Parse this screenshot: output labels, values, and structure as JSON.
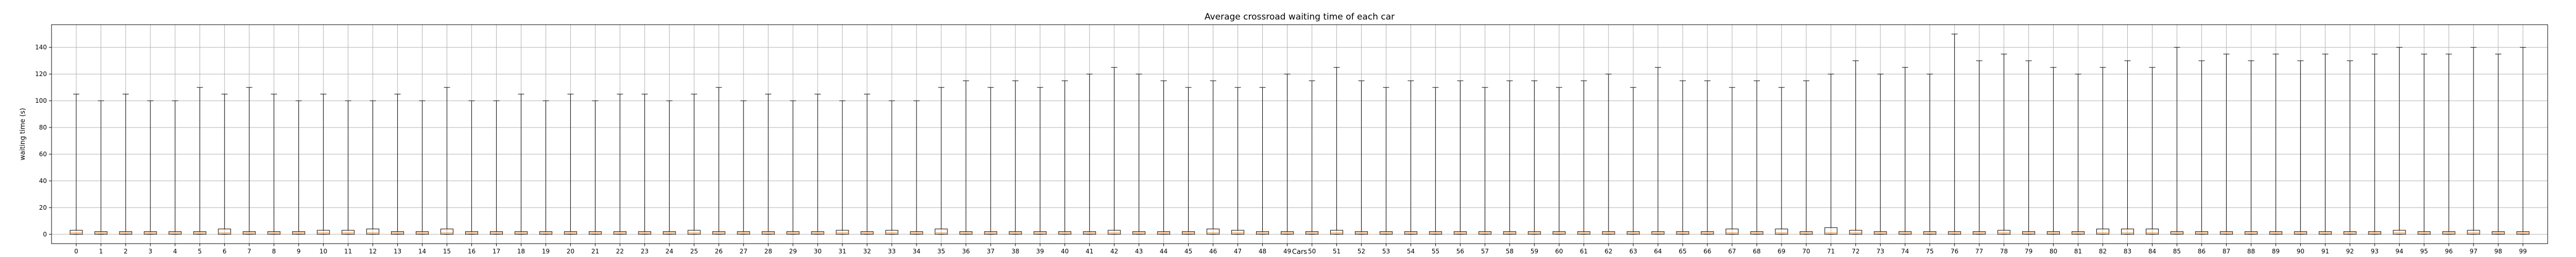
{
  "chart_data": {
    "type": "boxplot",
    "title": "Average crossroad waiting time of each car",
    "xlabel": "Cars",
    "ylabel": "waiting time (s)",
    "ylim": [
      -7,
      157
    ],
    "yticks": [
      0,
      20,
      40,
      60,
      80,
      100,
      120,
      140
    ],
    "grid": true,
    "colors": {
      "box": "#000000",
      "median": "#ff7f0e",
      "grid": "#b0b0b0"
    },
    "categories": [
      "0",
      "1",
      "2",
      "3",
      "4",
      "5",
      "6",
      "7",
      "8",
      "9",
      "10",
      "11",
      "12",
      "13",
      "14",
      "15",
      "16",
      "17",
      "18",
      "19",
      "20",
      "21",
      "22",
      "23",
      "24",
      "25",
      "26",
      "27",
      "28",
      "29",
      "30",
      "31",
      "32",
      "33",
      "34",
      "35",
      "36",
      "37",
      "38",
      "39",
      "40",
      "41",
      "42",
      "43",
      "44",
      "45",
      "46",
      "47",
      "48",
      "49",
      "50",
      "51",
      "52",
      "53",
      "54",
      "55",
      "56",
      "57",
      "58",
      "59",
      "60",
      "61",
      "62",
      "63",
      "64",
      "65",
      "66",
      "67",
      "68",
      "69",
      "70",
      "71",
      "72",
      "73",
      "74",
      "75",
      "76",
      "77",
      "78",
      "79",
      "80",
      "81",
      "82",
      "83",
      "84",
      "85",
      "86",
      "87",
      "88",
      "89",
      "90",
      "91",
      "92",
      "93",
      "94",
      "95",
      "96",
      "97",
      "98",
      "99"
    ],
    "boxes": [
      {
        "whislo": 0,
        "q1": 0,
        "med": 1,
        "q3": 3,
        "whishi": 105
      },
      {
        "whislo": 0,
        "q1": 0,
        "med": 1,
        "q3": 2,
        "whishi": 100
      },
      {
        "whislo": 0,
        "q1": 0,
        "med": 1,
        "q3": 2,
        "whishi": 105
      },
      {
        "whislo": 0,
        "q1": 0,
        "med": 1,
        "q3": 2,
        "whishi": 100
      },
      {
        "whislo": 0,
        "q1": 0,
        "med": 1,
        "q3": 2,
        "whishi": 100
      },
      {
        "whislo": 0,
        "q1": 0,
        "med": 1,
        "q3": 2,
        "whishi": 110
      },
      {
        "whislo": 0,
        "q1": 0,
        "med": 1,
        "q3": 4,
        "whishi": 105
      },
      {
        "whislo": 0,
        "q1": 0,
        "med": 1,
        "q3": 2,
        "whishi": 110
      },
      {
        "whislo": 0,
        "q1": 0,
        "med": 1,
        "q3": 2,
        "whishi": 105
      },
      {
        "whislo": 0,
        "q1": 0,
        "med": 1,
        "q3": 2,
        "whishi": 100
      },
      {
        "whislo": 0,
        "q1": 0,
        "med": 1,
        "q3": 3,
        "whishi": 105
      },
      {
        "whislo": 0,
        "q1": 0,
        "med": 1,
        "q3": 3,
        "whishi": 100
      },
      {
        "whislo": 0,
        "q1": 0,
        "med": 1,
        "q3": 4,
        "whishi": 100
      },
      {
        "whislo": 0,
        "q1": 0,
        "med": 1,
        "q3": 2,
        "whishi": 105
      },
      {
        "whislo": 0,
        "q1": 0,
        "med": 1,
        "q3": 2,
        "whishi": 100
      },
      {
        "whislo": 0,
        "q1": 0,
        "med": 1,
        "q3": 4,
        "whishi": 110
      },
      {
        "whislo": 0,
        "q1": 0,
        "med": 1,
        "q3": 2,
        "whishi": 100
      },
      {
        "whislo": 0,
        "q1": 0,
        "med": 1,
        "q3": 2,
        "whishi": 100
      },
      {
        "whislo": 0,
        "q1": 0,
        "med": 1,
        "q3": 2,
        "whishi": 105
      },
      {
        "whislo": 0,
        "q1": 0,
        "med": 1,
        "q3": 2,
        "whishi": 100
      },
      {
        "whislo": 0,
        "q1": 0,
        "med": 1,
        "q3": 2,
        "whishi": 105
      },
      {
        "whislo": 0,
        "q1": 0,
        "med": 1,
        "q3": 2,
        "whishi": 100
      },
      {
        "whislo": 0,
        "q1": 0,
        "med": 1,
        "q3": 2,
        "whishi": 105
      },
      {
        "whislo": 0,
        "q1": 0,
        "med": 1,
        "q3": 2,
        "whishi": 105
      },
      {
        "whislo": 0,
        "q1": 0,
        "med": 1,
        "q3": 2,
        "whishi": 100
      },
      {
        "whislo": 0,
        "q1": 0,
        "med": 1,
        "q3": 3,
        "whishi": 105
      },
      {
        "whislo": 0,
        "q1": 0,
        "med": 1,
        "q3": 2,
        "whishi": 110
      },
      {
        "whislo": 0,
        "q1": 0,
        "med": 1,
        "q3": 2,
        "whishi": 100
      },
      {
        "whislo": 0,
        "q1": 0,
        "med": 1,
        "q3": 2,
        "whishi": 105
      },
      {
        "whislo": 0,
        "q1": 0,
        "med": 1,
        "q3": 2,
        "whishi": 100
      },
      {
        "whislo": 0,
        "q1": 0,
        "med": 1,
        "q3": 2,
        "whishi": 105
      },
      {
        "whislo": 0,
        "q1": 0,
        "med": 1,
        "q3": 3,
        "whishi": 100
      },
      {
        "whislo": 0,
        "q1": 0,
        "med": 1,
        "q3": 2,
        "whishi": 105
      },
      {
        "whislo": 0,
        "q1": 0,
        "med": 1,
        "q3": 3,
        "whishi": 100
      },
      {
        "whislo": 0,
        "q1": 0,
        "med": 1,
        "q3": 2,
        "whishi": 100
      },
      {
        "whislo": 0,
        "q1": 0,
        "med": 1,
        "q3": 4,
        "whishi": 110
      },
      {
        "whislo": 0,
        "q1": 0,
        "med": 1,
        "q3": 2,
        "whishi": 115
      },
      {
        "whislo": 0,
        "q1": 0,
        "med": 1,
        "q3": 2,
        "whishi": 110
      },
      {
        "whislo": 0,
        "q1": 0,
        "med": 1,
        "q3": 2,
        "whishi": 115
      },
      {
        "whislo": 0,
        "q1": 0,
        "med": 1,
        "q3": 2,
        "whishi": 110
      },
      {
        "whislo": 0,
        "q1": 0,
        "med": 1,
        "q3": 2,
        "whishi": 115
      },
      {
        "whislo": 0,
        "q1": 0,
        "med": 1,
        "q3": 2,
        "whishi": 120
      },
      {
        "whislo": 0,
        "q1": 0,
        "med": 1,
        "q3": 3,
        "whishi": 125
      },
      {
        "whislo": 0,
        "q1": 0,
        "med": 1,
        "q3": 2,
        "whishi": 120
      },
      {
        "whislo": 0,
        "q1": 0,
        "med": 1,
        "q3": 2,
        "whishi": 115
      },
      {
        "whislo": 0,
        "q1": 0,
        "med": 1,
        "q3": 2,
        "whishi": 110
      },
      {
        "whislo": 0,
        "q1": 0,
        "med": 1,
        "q3": 4,
        "whishi": 115
      },
      {
        "whislo": 0,
        "q1": 0,
        "med": 1,
        "q3": 3,
        "whishi": 110
      },
      {
        "whislo": 0,
        "q1": 0,
        "med": 1,
        "q3": 2,
        "whishi": 110
      },
      {
        "whislo": 0,
        "q1": 0,
        "med": 1,
        "q3": 2,
        "whishi": 120
      },
      {
        "whislo": 0,
        "q1": 0,
        "med": 1,
        "q3": 2,
        "whishi": 115
      },
      {
        "whislo": 0,
        "q1": 0,
        "med": 1,
        "q3": 3,
        "whishi": 125
      },
      {
        "whislo": 0,
        "q1": 0,
        "med": 1,
        "q3": 2,
        "whishi": 115
      },
      {
        "whislo": 0,
        "q1": 0,
        "med": 1,
        "q3": 2,
        "whishi": 110
      },
      {
        "whislo": 0,
        "q1": 0,
        "med": 1,
        "q3": 2,
        "whishi": 115
      },
      {
        "whislo": 0,
        "q1": 0,
        "med": 1,
        "q3": 2,
        "whishi": 110
      },
      {
        "whislo": 0,
        "q1": 0,
        "med": 1,
        "q3": 2,
        "whishi": 115
      },
      {
        "whislo": 0,
        "q1": 0,
        "med": 1,
        "q3": 2,
        "whishi": 110
      },
      {
        "whislo": 0,
        "q1": 0,
        "med": 1,
        "q3": 2,
        "whishi": 115
      },
      {
        "whislo": 0,
        "q1": 0,
        "med": 1,
        "q3": 2,
        "whishi": 115
      },
      {
        "whislo": 0,
        "q1": 0,
        "med": 1,
        "q3": 2,
        "whishi": 110
      },
      {
        "whislo": 0,
        "q1": 0,
        "med": 1,
        "q3": 2,
        "whishi": 115
      },
      {
        "whislo": 0,
        "q1": 0,
        "med": 1,
        "q3": 2,
        "whishi": 120
      },
      {
        "whislo": 0,
        "q1": 0,
        "med": 1,
        "q3": 2,
        "whishi": 110
      },
      {
        "whislo": 0,
        "q1": 0,
        "med": 1,
        "q3": 2,
        "whishi": 125
      },
      {
        "whislo": 0,
        "q1": 0,
        "med": 1,
        "q3": 2,
        "whishi": 115
      },
      {
        "whislo": 0,
        "q1": 0,
        "med": 1,
        "q3": 2,
        "whishi": 115
      },
      {
        "whislo": 0,
        "q1": 0,
        "med": 1,
        "q3": 4,
        "whishi": 110
      },
      {
        "whislo": 0,
        "q1": 0,
        "med": 1,
        "q3": 2,
        "whishi": 115
      },
      {
        "whislo": 0,
        "q1": 0,
        "med": 1,
        "q3": 4,
        "whishi": 110
      },
      {
        "whislo": 0,
        "q1": 0,
        "med": 1,
        "q3": 2,
        "whishi": 115
      },
      {
        "whislo": 0,
        "q1": 0,
        "med": 1,
        "q3": 5,
        "whishi": 120
      },
      {
        "whislo": 0,
        "q1": 0,
        "med": 1,
        "q3": 3,
        "whishi": 130
      },
      {
        "whislo": 0,
        "q1": 0,
        "med": 1,
        "q3": 2,
        "whishi": 120
      },
      {
        "whislo": 0,
        "q1": 0,
        "med": 1,
        "q3": 2,
        "whishi": 125
      },
      {
        "whislo": 0,
        "q1": 0,
        "med": 1,
        "q3": 2,
        "whishi": 120
      },
      {
        "whislo": 0,
        "q1": 0,
        "med": 1,
        "q3": 2,
        "whishi": 150
      },
      {
        "whislo": 0,
        "q1": 0,
        "med": 1,
        "q3": 2,
        "whishi": 130
      },
      {
        "whislo": 0,
        "q1": 0,
        "med": 1,
        "q3": 3,
        "whishi": 135
      },
      {
        "whislo": 0,
        "q1": 0,
        "med": 1,
        "q3": 2,
        "whishi": 130
      },
      {
        "whislo": 0,
        "q1": 0,
        "med": 1,
        "q3": 2,
        "whishi": 125
      },
      {
        "whislo": 0,
        "q1": 0,
        "med": 1,
        "q3": 2,
        "whishi": 120
      },
      {
        "whislo": 0,
        "q1": 0,
        "med": 1,
        "q3": 4,
        "whishi": 125
      },
      {
        "whislo": 0,
        "q1": 0,
        "med": 1,
        "q3": 4,
        "whishi": 130
      },
      {
        "whislo": 0,
        "q1": 0,
        "med": 1,
        "q3": 4,
        "whishi": 125
      },
      {
        "whislo": 0,
        "q1": 0,
        "med": 1,
        "q3": 2,
        "whishi": 140
      },
      {
        "whislo": 0,
        "q1": 0,
        "med": 1,
        "q3": 2,
        "whishi": 130
      },
      {
        "whislo": 0,
        "q1": 0,
        "med": 1,
        "q3": 2,
        "whishi": 135
      },
      {
        "whislo": 0,
        "q1": 0,
        "med": 1,
        "q3": 2,
        "whishi": 130
      },
      {
        "whislo": 0,
        "q1": 0,
        "med": 1,
        "q3": 2,
        "whishi": 135
      },
      {
        "whislo": 0,
        "q1": 0,
        "med": 1,
        "q3": 2,
        "whishi": 130
      },
      {
        "whislo": 0,
        "q1": 0,
        "med": 1,
        "q3": 2,
        "whishi": 135
      },
      {
        "whislo": 0,
        "q1": 0,
        "med": 1,
        "q3": 2,
        "whishi": 130
      },
      {
        "whislo": 0,
        "q1": 0,
        "med": 1,
        "q3": 2,
        "whishi": 135
      },
      {
        "whislo": 0,
        "q1": 0,
        "med": 1,
        "q3": 3,
        "whishi": 140
      },
      {
        "whislo": 0,
        "q1": 0,
        "med": 1,
        "q3": 2,
        "whishi": 135
      },
      {
        "whislo": 0,
        "q1": 0,
        "med": 1,
        "q3": 2,
        "whishi": 135
      },
      {
        "whislo": 0,
        "q1": 0,
        "med": 1,
        "q3": 3,
        "whishi": 140
      },
      {
        "whislo": 0,
        "q1": 0,
        "med": 1,
        "q3": 2,
        "whishi": 135
      },
      {
        "whislo": 0,
        "q1": 0,
        "med": 1,
        "q3": 2,
        "whishi": 140
      }
    ]
  }
}
